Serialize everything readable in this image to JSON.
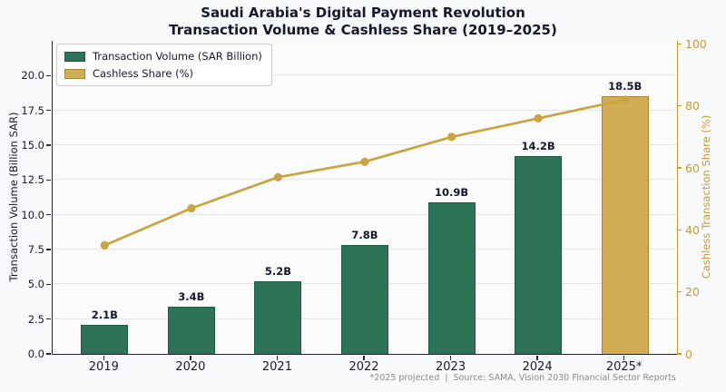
{
  "title": {
    "line1": "Saudi Arabia's Digital Payment Revolution",
    "line2": "Transaction Volume & Cashless Share (2019–2025)"
  },
  "legend": {
    "items": [
      {
        "label": "Transaction Volume (SAR Billion)",
        "color": "#2d7357",
        "edge": "#1e5a41"
      },
      {
        "label": "Cashless Share (%)",
        "color": "#d2ad55",
        "edge": "#a8872e"
      }
    ]
  },
  "footer": "*2025 projected  |  Source: SAMA, Vision 2030 Financial Sector Reports",
  "chart_data": {
    "type": "combo-bar-line",
    "categories": [
      "2019",
      "2020",
      "2021",
      "2022",
      "2023",
      "2024",
      "2025*"
    ],
    "series": [
      {
        "name": "Transaction Volume (SAR Billion)",
        "type": "bar",
        "axis": "left",
        "values": [
          2.1,
          3.4,
          5.2,
          7.8,
          10.9,
          14.2,
          18.5
        ],
        "value_labels": [
          "2.1B",
          "3.4B",
          "5.2B",
          "7.8B",
          "10.9B",
          "14.2B",
          "18.5B"
        ],
        "bar_colors": [
          "#2d7357",
          "#2d7357",
          "#2d7357",
          "#2d7357",
          "#2d7357",
          "#2d7357",
          "#d2ad55"
        ],
        "bar_edge_colors": [
          "#1e5a41",
          "#1e5a41",
          "#1e5a41",
          "#1e5a41",
          "#1e5a41",
          "#1e5a41",
          "#a8872e"
        ]
      },
      {
        "name": "Cashless Share (%)",
        "type": "line",
        "axis": "right",
        "values": [
          35,
          47,
          57,
          62,
          70,
          76,
          82
        ],
        "color": "#c9a43f"
      }
    ],
    "left_axis": {
      "label": "Transaction Volume (Billion SAR)",
      "ylim": [
        0,
        22.5
      ],
      "ticks": [
        0,
        2.5,
        5,
        7.5,
        10,
        12.5,
        15,
        17.5,
        20
      ],
      "tick_labels": [
        "0.0",
        "2.5",
        "5.0",
        "7.5",
        "10.0",
        "12.5",
        "15.0",
        "17.5",
        "20.0"
      ],
      "color": "#1a1a2e"
    },
    "right_axis": {
      "label": "Cashless Transaction Share (%)",
      "ylim": [
        0,
        101
      ],
      "ticks": [
        0,
        20,
        40,
        60,
        80,
        100
      ],
      "tick_labels": [
        "0",
        "20",
        "40",
        "60",
        "80",
        "100"
      ],
      "color": "#c49b35"
    },
    "grid": true,
    "legend_position": "upper left"
  }
}
